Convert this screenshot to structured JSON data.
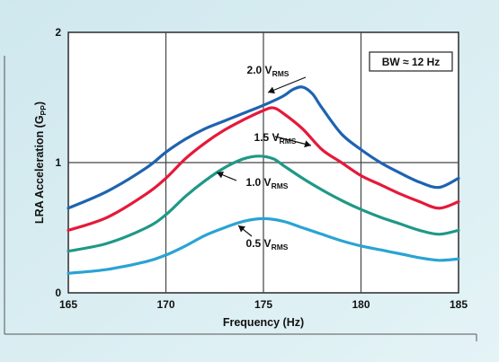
{
  "chart_data": {
    "type": "line",
    "xlabel": "Frequency (Hz)",
    "ylabel_main": "LRA Acceleration (G",
    "ylabel_sub": "PP",
    "ylabel_close": ")",
    "xlim": [
      165,
      185
    ],
    "ylim": [
      0,
      2
    ],
    "xticks": [
      "165",
      "170",
      "175",
      "180",
      "185"
    ],
    "yticks": [
      "0",
      "1",
      "2"
    ],
    "grid": true,
    "annotation_box": "BW ≈ 12 Hz",
    "series": [
      {
        "name_main": "2.0 V",
        "name_sub": "RMS",
        "color": "#1e63b0",
        "points": [
          [
            165,
            0.65
          ],
          [
            167,
            0.78
          ],
          [
            169,
            0.96
          ],
          [
            170,
            1.08
          ],
          [
            171,
            1.18
          ],
          [
            172,
            1.26
          ],
          [
            173,
            1.32
          ],
          [
            174,
            1.38
          ],
          [
            175,
            1.44
          ],
          [
            176,
            1.51
          ],
          [
            176.5,
            1.56
          ],
          [
            177,
            1.58
          ],
          [
            177.5,
            1.53
          ],
          [
            178,
            1.42
          ],
          [
            179,
            1.22
          ],
          [
            180,
            1.1
          ],
          [
            181,
            1.0
          ],
          [
            182,
            0.92
          ],
          [
            183,
            0.85
          ],
          [
            184,
            0.81
          ],
          [
            185,
            0.88
          ]
        ]
      },
      {
        "name_main": "1.5 V",
        "name_sub": "RMS",
        "color": "#e5193a",
        "points": [
          [
            165,
            0.48
          ],
          [
            167,
            0.58
          ],
          [
            169,
            0.76
          ],
          [
            170,
            0.88
          ],
          [
            171,
            1.03
          ],
          [
            172,
            1.15
          ],
          [
            173,
            1.25
          ],
          [
            174,
            1.33
          ],
          [
            175,
            1.4
          ],
          [
            175.5,
            1.42
          ],
          [
            176,
            1.38
          ],
          [
            177,
            1.26
          ],
          [
            178,
            1.1
          ],
          [
            179,
            1.0
          ],
          [
            180,
            0.9
          ],
          [
            181,
            0.83
          ],
          [
            182,
            0.76
          ],
          [
            183,
            0.7
          ],
          [
            184,
            0.65
          ],
          [
            185,
            0.7
          ]
        ]
      },
      {
        "name_main": "1.0 V",
        "name_sub": "RMS",
        "color": "#1f9887",
        "points": [
          [
            165,
            0.32
          ],
          [
            167,
            0.38
          ],
          [
            169,
            0.5
          ],
          [
            170,
            0.6
          ],
          [
            171,
            0.74
          ],
          [
            172,
            0.86
          ],
          [
            173,
            0.96
          ],
          [
            174,
            1.03
          ],
          [
            174.8,
            1.05
          ],
          [
            175.5,
            1.03
          ],
          [
            176,
            0.98
          ],
          [
            177,
            0.88
          ],
          [
            178,
            0.79
          ],
          [
            179,
            0.71
          ],
          [
            180,
            0.64
          ],
          [
            181,
            0.58
          ],
          [
            182,
            0.53
          ],
          [
            183,
            0.48
          ],
          [
            184,
            0.45
          ],
          [
            185,
            0.48
          ]
        ]
      },
      {
        "name_main": "0.5 V",
        "name_sub": "RMS",
        "color": "#2aa3d4",
        "points": [
          [
            165,
            0.15
          ],
          [
            167,
            0.18
          ],
          [
            169,
            0.24
          ],
          [
            170,
            0.29
          ],
          [
            171,
            0.36
          ],
          [
            172,
            0.44
          ],
          [
            173,
            0.5
          ],
          [
            174,
            0.55
          ],
          [
            175,
            0.57
          ],
          [
            176,
            0.55
          ],
          [
            177,
            0.5
          ],
          [
            178,
            0.45
          ],
          [
            179,
            0.4
          ],
          [
            180,
            0.36
          ],
          [
            181,
            0.33
          ],
          [
            182,
            0.3
          ],
          [
            183,
            0.27
          ],
          [
            184,
            0.25
          ],
          [
            185,
            0.26
          ]
        ]
      }
    ]
  }
}
